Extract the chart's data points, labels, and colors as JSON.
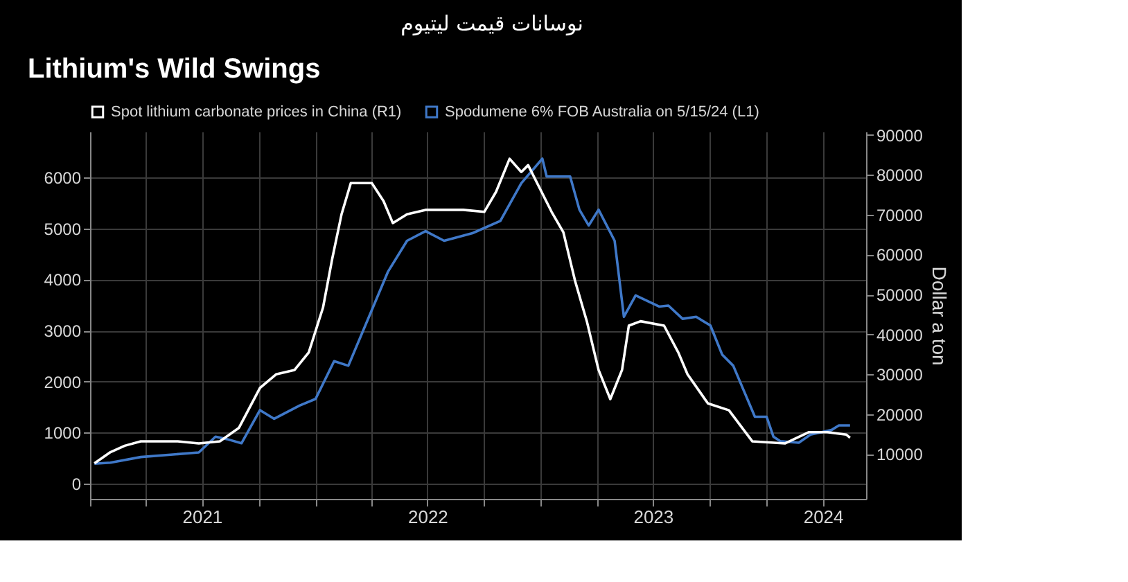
{
  "chart_data": {
    "type": "line",
    "title": "Lithium's Wild Swings",
    "annotations": [
      "نوسانات قیمت لیتیوم"
    ],
    "y2label": "Dollar a ton",
    "xlim": [
      "2021-01-01",
      "2024-06-10"
    ],
    "xticks": [
      {
        "value": "2021-01-01",
        "label": null
      },
      {
        "value": "2021-04-01",
        "label": null
      },
      {
        "value": "2021-07-01",
        "label": "2021"
      },
      {
        "value": "2021-10-01",
        "label": null
      },
      {
        "value": "2022-01-01",
        "label": null
      },
      {
        "value": "2022-04-01",
        "label": null
      },
      {
        "value": "2022-07-01",
        "label": "2022"
      },
      {
        "value": "2022-10-01",
        "label": null
      },
      {
        "value": "2023-01-01",
        "label": null
      },
      {
        "value": "2023-04-01",
        "label": null
      },
      {
        "value": "2023-07-01",
        "label": "2023"
      },
      {
        "value": "2023-10-01",
        "label": null
      },
      {
        "value": "2024-01-01",
        "label": null
      },
      {
        "value": "2024-04-01",
        "label": "2024"
      }
    ],
    "ylim": [
      -300,
      6900
    ],
    "yticks": [
      0,
      1000,
      2000,
      3000,
      4000,
      5000,
      6000
    ],
    "y2lim": [
      -1200,
      90800
    ],
    "y2ticks": [
      10000,
      20000,
      30000,
      40000,
      50000,
      60000,
      70000,
      80000,
      90000
    ],
    "grid": true,
    "legend": "top left",
    "line_style": "solid",
    "series": [
      {
        "name": "Spot lithium carbonate prices in China (R1)",
        "color": "#ffffff",
        "axis": "y2",
        "x": [
          "2021-01-08",
          "2021-02-03",
          "2021-02-26",
          "2021-03-24",
          "2021-05-23",
          "2021-06-26",
          "2021-07-30",
          "2021-08-30",
          "2021-10-03",
          "2021-10-29",
          "2021-11-28",
          "2021-12-21",
          "2022-01-13",
          "2022-01-28",
          "2022-02-12",
          "2022-02-27",
          "2022-04-02",
          "2022-04-21",
          "2022-05-06",
          "2022-05-29",
          "2022-06-28",
          "2022-08-28",
          "2022-10-01",
          "2022-10-20",
          "2022-11-11",
          "2022-11-30",
          "2022-12-11",
          "2023-01-18",
          "2023-02-06",
          "2023-02-25",
          "2023-03-16",
          "2023-04-04",
          "2023-04-23",
          "2023-05-12",
          "2023-05-23",
          "2023-06-11",
          "2023-07-19",
          "2023-08-11",
          "2023-08-26",
          "2023-09-28",
          "2023-11-01",
          "2023-12-09",
          "2024-01-31",
          "2024-03-09",
          "2024-04-08",
          "2024-05-09",
          "2024-05-15"
        ],
        "values": [
          7700,
          10500,
          12100,
          13200,
          13200,
          12700,
          13200,
          16600,
          26600,
          30000,
          31100,
          35500,
          46700,
          59000,
          70100,
          77900,
          77900,
          73400,
          67900,
          70100,
          71200,
          71200,
          70700,
          75700,
          84000,
          80700,
          82400,
          70700,
          65600,
          53400,
          43300,
          31100,
          23800,
          31100,
          42200,
          43300,
          42200,
          35500,
          30000,
          22700,
          21000,
          13200,
          12700,
          15500,
          15500,
          14900,
          14100
        ]
      },
      {
        "name": "Spodumene 6% FOB Australia on 5/15/24 (L1)",
        "color": "#3f78c8",
        "axis": "y",
        "x": [
          "2021-01-08",
          "2021-02-03",
          "2021-03-24",
          "2021-06-26",
          "2021-07-23",
          "2021-08-11",
          "2021-09-03",
          "2021-10-03",
          "2021-10-26",
          "2021-12-06",
          "2022-01-01",
          "2022-01-31",
          "2022-02-23",
          "2022-04-28",
          "2022-05-29",
          "2022-06-28",
          "2022-07-28",
          "2022-09-12",
          "2022-10-27",
          "2022-11-30",
          "2023-01-03",
          "2023-01-10",
          "2023-02-17",
          "2023-03-04",
          "2023-03-19",
          "2023-04-04",
          "2023-04-30",
          "2023-05-15",
          "2023-06-03",
          "2023-07-11",
          "2023-07-26",
          "2023-08-18",
          "2023-09-09",
          "2023-10-02",
          "2023-10-21",
          "2023-11-08",
          "2023-12-13",
          "2024-01-01",
          "2024-01-12",
          "2024-01-23",
          "2024-02-22",
          "2024-03-12",
          "2024-04-15",
          "2024-04-27",
          "2024-05-15"
        ],
        "values": [
          390,
          410,
          520,
          610,
          920,
          870,
          790,
          1440,
          1270,
          1530,
          1660,
          2400,
          2310,
          4150,
          4760,
          4950,
          4760,
          4910,
          5150,
          5890,
          6370,
          6020,
          6020,
          5370,
          5060,
          5370,
          4760,
          3270,
          3690,
          3470,
          3490,
          3230,
          3270,
          3100,
          2530,
          2310,
          1310,
          1310,
          920,
          830,
          800,
          960,
          1050,
          1140,
          1140
        ]
      }
    ]
  }
}
